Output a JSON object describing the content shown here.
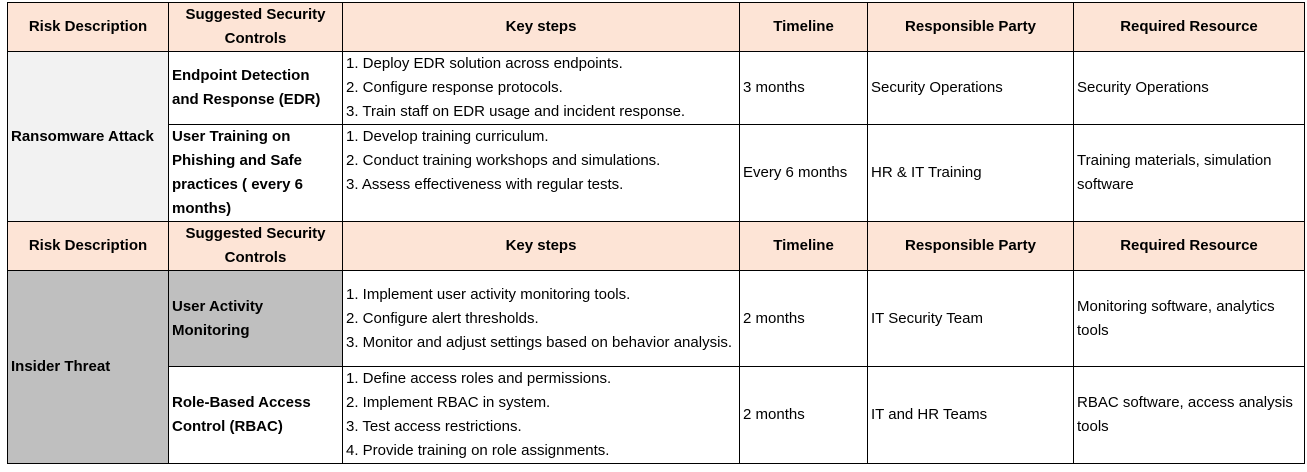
{
  "headers": {
    "risk": "Risk Description",
    "controls": "Suggested Security Controls",
    "steps": "Key steps",
    "timeline": "Timeline",
    "party": "Responsible Party",
    "resource": "Required Resource"
  },
  "ransomware": {
    "risk": "Ransomware Attack",
    "rows": [
      {
        "control": "Endpoint Detection and Response (EDR)",
        "steps": [
          "1. Deploy EDR solution across endpoints.",
          "2. Configure response protocols.",
          "3. Train staff on EDR usage and incident response."
        ],
        "timeline": "3 months",
        "party": "Security Operations",
        "resource": "Security Operations"
      },
      {
        "control": "User Training on Phishing and Safe practices ( every 6 months)",
        "steps": [
          "1. Develop training curriculum.",
          "2. Conduct training workshops and simulations.",
          "3. Assess effectiveness with regular tests."
        ],
        "timeline": "Every 6 months",
        "party": "HR & IT Training",
        "resource": "Training materials, simulation software"
      }
    ]
  },
  "insider": {
    "risk": "Insider Threat",
    "rows": [
      {
        "control": "User Activity Monitoring",
        "steps": [
          "1. Implement user activity monitoring tools.",
          "2. Configure alert thresholds.",
          "3. Monitor and adjust settings based on behavior analysis."
        ],
        "timeline": "2 months",
        "party": "IT Security Team",
        "resource": "Monitoring software, analytics tools"
      },
      {
        "control": "Role-Based Access Control (RBAC)",
        "steps": [
          "1. Define access roles and permissions.",
          "2. Implement RBAC in system.",
          "3. Test access restrictions.",
          "4. Provide training on role assignments."
        ],
        "timeline": "2 months",
        "party": "IT and HR Teams",
        "resource": "RBAC software, access analysis tools"
      }
    ]
  }
}
